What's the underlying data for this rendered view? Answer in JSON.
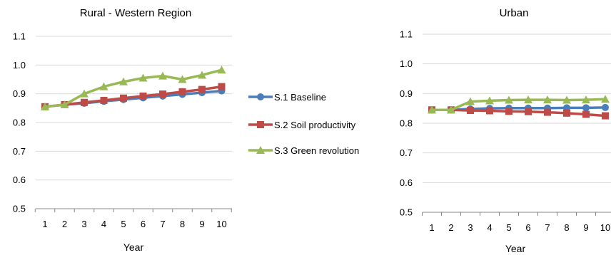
{
  "chart_data": [
    {
      "type": "line",
      "title": "Rural - Western Region",
      "xlabel": "Year",
      "ylabel": "",
      "x": [
        1,
        2,
        3,
        4,
        5,
        6,
        7,
        8,
        9,
        10
      ],
      "x_tick_labels": [
        "1",
        "2",
        "3",
        "4",
        "5",
        "6",
        "7",
        "8",
        "9",
        "10"
      ],
      "ylim": [
        0.5,
        1.1
      ],
      "y_tick_labels": [
        "0.5",
        "0.6",
        "0.7",
        "0.8",
        "0.9",
        "1.0",
        "1.1"
      ],
      "grid": true,
      "legend_position": "right",
      "series": [
        {
          "name": "S.1 Baseline",
          "color": "#4a7ebb",
          "marker": "circle",
          "values": [
            0.855,
            0.862,
            0.867,
            0.874,
            0.88,
            0.886,
            0.892,
            0.898,
            0.904,
            0.91
          ]
        },
        {
          "name": "S.2 Soil productivity",
          "color": "#be4b48",
          "marker": "square",
          "values": [
            0.855,
            0.862,
            0.87,
            0.877,
            0.885,
            0.892,
            0.899,
            0.907,
            0.915,
            0.925
          ]
        },
        {
          "name": "S.3 Green revolution",
          "color": "#98b954",
          "marker": "triangle",
          "values": [
            0.855,
            0.862,
            0.9,
            0.925,
            0.942,
            0.955,
            0.962,
            0.95,
            0.965,
            0.983
          ]
        }
      ]
    },
    {
      "type": "line",
      "title": "Urban",
      "xlabel": "Year",
      "ylabel": "",
      "x": [
        1,
        2,
        3,
        4,
        5,
        6,
        7,
        8,
        9,
        10
      ],
      "x_tick_labels": [
        "1",
        "2",
        "3",
        "4",
        "5",
        "6",
        "7",
        "8",
        "9",
        "10"
      ],
      "ylim": [
        0.5,
        1.1
      ],
      "y_tick_labels": [
        "0.5",
        "0.6",
        "0.7",
        "0.8",
        "0.9",
        "1.0",
        "1.1"
      ],
      "grid": true,
      "series": [
        {
          "color": "#4a7ebb",
          "marker": "circle",
          "values": [
            0.845,
            0.845,
            0.848,
            0.85,
            0.851,
            0.851,
            0.851,
            0.852,
            0.852,
            0.853
          ]
        },
        {
          "color": "#be4b48",
          "marker": "square",
          "values": [
            0.845,
            0.845,
            0.843,
            0.842,
            0.84,
            0.839,
            0.837,
            0.834,
            0.83,
            0.825
          ]
        },
        {
          "color": "#98b954",
          "marker": "triangle",
          "values": [
            0.845,
            0.845,
            0.873,
            0.876,
            0.878,
            0.879,
            0.879,
            0.878,
            0.879,
            0.881
          ]
        }
      ]
    }
  ]
}
